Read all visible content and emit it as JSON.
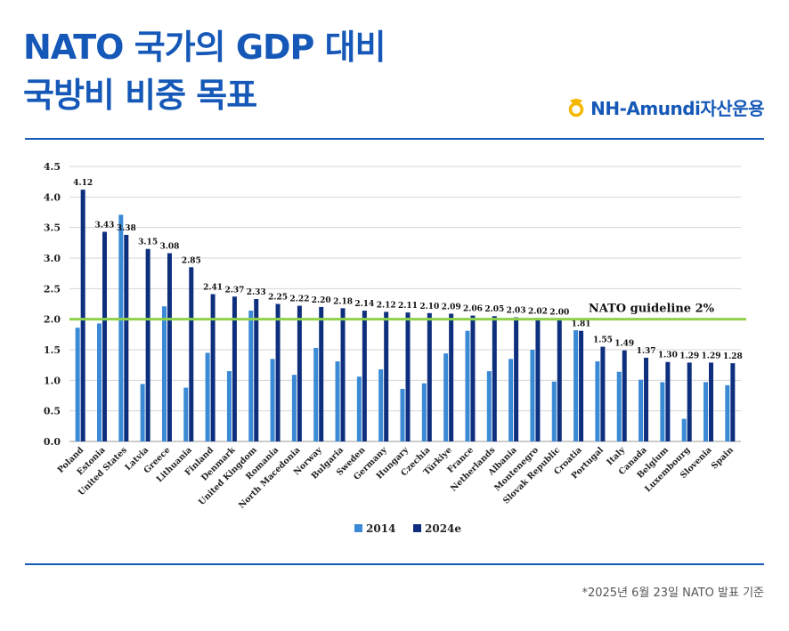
{
  "header": {
    "title_line1": "NATO 국가의 GDP 대비",
    "title_line2": "국방비 비중 목표",
    "brand": "NH-Amundi자산운용"
  },
  "footnote": "*2025년 6월 23일 NATO 발표 기준",
  "colors": {
    "accent": "#1558b7",
    "series_2014": "#3b8ad6",
    "series_2024": "#0d2f7e",
    "guideline": "#8ed24a"
  },
  "chart_data": {
    "type": "bar",
    "categories": [
      "Poland",
      "Estonia",
      "United States",
      "Latvia",
      "Greece",
      "Lithuania",
      "Finland",
      "Denmark",
      "United Kingdom",
      "Romania",
      "North Macedonia",
      "Norway",
      "Bulgaria",
      "Sweden",
      "Germany",
      "Hungary",
      "Czechia",
      "Türkiye",
      "France",
      "Netherlands",
      "Albania",
      "Montenegro",
      "Slovak Republic",
      "Croatia",
      "Portugal",
      "Italy",
      "Canada",
      "Belgium",
      "Luxembourg",
      "Slovenia",
      "Spain"
    ],
    "series": [
      {
        "name": "2014",
        "values": [
          1.86,
          1.93,
          3.71,
          0.94,
          2.21,
          0.88,
          1.45,
          1.15,
          2.14,
          1.35,
          1.09,
          1.53,
          1.31,
          1.06,
          1.18,
          0.86,
          0.95,
          1.44,
          1.81,
          1.15,
          1.35,
          1.5,
          0.98,
          1.82,
          1.31,
          1.14,
          1.01,
          0.97,
          0.37,
          0.97,
          0.92
        ]
      },
      {
        "name": "2024e",
        "values": [
          4.12,
          3.43,
          3.38,
          3.15,
          3.08,
          2.85,
          2.41,
          2.37,
          2.33,
          2.25,
          2.22,
          2.2,
          2.18,
          2.14,
          2.12,
          2.11,
          2.1,
          2.09,
          2.06,
          2.05,
          2.03,
          2.02,
          2.0,
          1.81,
          1.55,
          1.49,
          1.37,
          1.3,
          1.29,
          1.29,
          1.28
        ]
      }
    ],
    "value_labels": [
      "4.12",
      "3.43",
      "3.38",
      "3.15",
      "3.08",
      "2.85",
      "2.41",
      "2.37",
      "2.33",
      "2.25",
      "2.22",
      "2.20",
      "2.18",
      "2.14",
      "2.12",
      "2.11",
      "2.10",
      "2.09",
      "2.06",
      "2.05",
      "2.03",
      "2.02",
      "2.00",
      "1.81",
      "1.55",
      "1.49",
      "1.37",
      "1.30",
      "1.29",
      "1.29",
      "1.28"
    ],
    "y_ticks": [
      "0.0",
      "0.5",
      "1.0",
      "1.5",
      "2.0",
      "2.5",
      "3.0",
      "3.5",
      "4.0",
      "4.5"
    ],
    "ylim": [
      0,
      4.5
    ],
    "guideline": {
      "value": 2.0,
      "label": "NATO guideline 2%"
    },
    "grid": true,
    "legend_position": "bottom-center"
  }
}
